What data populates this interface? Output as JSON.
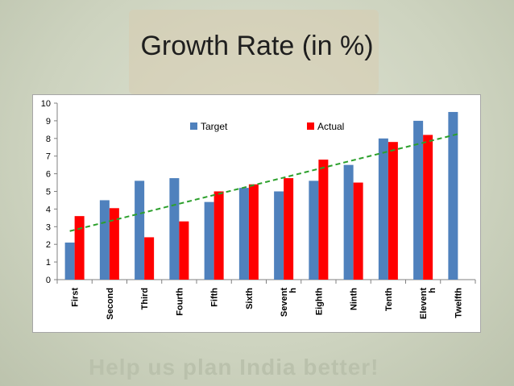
{
  "slide": {
    "title": "Growth Rate (in %)",
    "watermark_text": "Help us plan India better!"
  },
  "chart_data": {
    "type": "bar",
    "title": "",
    "xlabel": "",
    "ylabel": "",
    "ylim": [
      0,
      10
    ],
    "yticks": [
      0,
      1,
      2,
      3,
      4,
      5,
      6,
      7,
      8,
      9,
      10
    ],
    "grid": false,
    "legend_position": "top",
    "categories": [
      "First",
      "Second",
      "Third",
      "Fourth",
      "Fifth",
      "Sixth",
      "Sevent h",
      "Eighth",
      "Ninth",
      "Tenth",
      "Elevent h",
      "Twelfth"
    ],
    "series": [
      {
        "name": "Target",
        "color": "#4f81bd",
        "values": [
          2.1,
          4.5,
          5.6,
          5.75,
          4.4,
          5.2,
          5.0,
          5.6,
          6.5,
          8.0,
          9.0,
          9.5
        ]
      },
      {
        "name": "Actual",
        "color": "#ff0000",
        "values": [
          3.6,
          4.05,
          2.4,
          3.3,
          5.0,
          5.4,
          5.75,
          6.8,
          5.5,
          7.8,
          8.2,
          null
        ]
      }
    ],
    "trendline": {
      "color": "#2ca02c",
      "style": "dashed",
      "from": 2.75,
      "to": 8.25
    }
  }
}
